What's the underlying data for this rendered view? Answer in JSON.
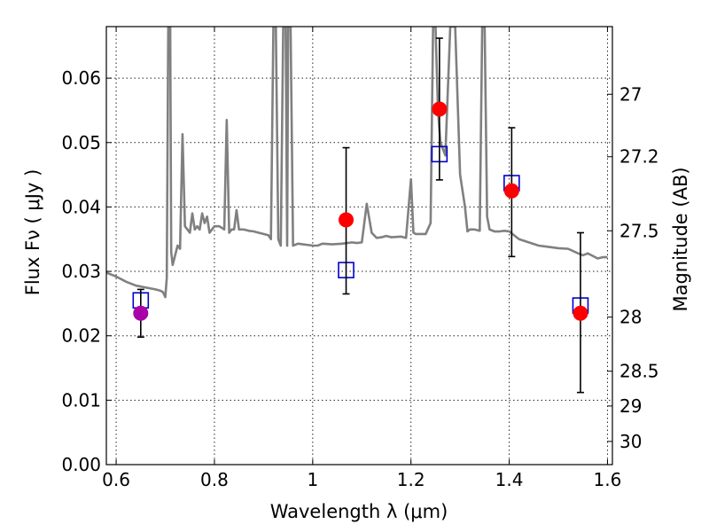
{
  "chart_data": {
    "type": "scatter",
    "xlabel": "Wavelength  λ (μm)",
    "ylabel": "Flux  Fν  ( μJy )",
    "ylabel_right": "Magnitude (AB)",
    "xlim": [
      0.58,
      1.61
    ],
    "ylim": [
      0.0,
      0.068
    ],
    "x_ticks": [
      0.6,
      0.8,
      1.0,
      1.2,
      1.4,
      1.6
    ],
    "x_tick_labels": [
      "0.6",
      "0.8",
      "1",
      "1.2",
      "1.4",
      "1.6"
    ],
    "y_ticks": [
      0.0,
      0.01,
      0.02,
      0.03,
      0.04,
      0.05,
      0.06
    ],
    "y_tick_labels": [
      "0.00",
      "0.01",
      "0.02",
      "0.03",
      "0.04",
      "0.05",
      "0.06"
    ],
    "right_ticks": [
      {
        "label": "27",
        "flux": 0.0575
      },
      {
        "label": "27.2",
        "flux": 0.0478
      },
      {
        "label": "27.5",
        "flux": 0.0363
      },
      {
        "label": "28",
        "flux": 0.0229
      },
      {
        "label": "28.5",
        "flux": 0.0145
      },
      {
        "label": "29",
        "flux": 0.0091
      },
      {
        "label": "30",
        "flux": 0.0036
      }
    ],
    "grid": true,
    "series": [
      {
        "kind": "spectrum",
        "color": "#808080",
        "points": [
          [
            0.58,
            0.0298
          ],
          [
            0.6,
            0.0292
          ],
          [
            0.62,
            0.0284
          ],
          [
            0.64,
            0.0278
          ],
          [
            0.66,
            0.0275
          ],
          [
            0.68,
            0.0272
          ],
          [
            0.69,
            0.027
          ],
          [
            0.695,
            0.0268
          ],
          [
            0.7,
            0.026
          ],
          [
            0.703,
            0.029
          ],
          [
            0.706,
            0.068
          ],
          [
            0.71,
            0.068
          ],
          [
            0.712,
            0.033
          ],
          [
            0.715,
            0.031
          ],
          [
            0.72,
            0.0325
          ],
          [
            0.725,
            0.034
          ],
          [
            0.73,
            0.0335
          ],
          [
            0.735,
            0.0513
          ],
          [
            0.74,
            0.037
          ],
          [
            0.745,
            0.0365
          ],
          [
            0.75,
            0.036
          ],
          [
            0.755,
            0.039
          ],
          [
            0.76,
            0.0365
          ],
          [
            0.765,
            0.037
          ],
          [
            0.77,
            0.0365
          ],
          [
            0.775,
            0.039
          ],
          [
            0.78,
            0.0375
          ],
          [
            0.785,
            0.0385
          ],
          [
            0.79,
            0.036
          ],
          [
            0.8,
            0.037
          ],
          [
            0.81,
            0.037
          ],
          [
            0.82,
            0.0365
          ],
          [
            0.825,
            0.0535
          ],
          [
            0.83,
            0.036
          ],
          [
            0.835,
            0.0365
          ],
          [
            0.84,
            0.0365
          ],
          [
            0.845,
            0.0395
          ],
          [
            0.85,
            0.0365
          ],
          [
            0.86,
            0.0365
          ],
          [
            0.87,
            0.0363
          ],
          [
            0.88,
            0.0362
          ],
          [
            0.89,
            0.036
          ],
          [
            0.9,
            0.0358
          ],
          [
            0.91,
            0.0356
          ],
          [
            0.915,
            0.035
          ],
          [
            0.92,
            0.068
          ],
          [
            0.925,
            0.068
          ],
          [
            0.93,
            0.035
          ],
          [
            0.935,
            0.034
          ],
          [
            0.94,
            0.068
          ],
          [
            0.945,
            0.068
          ],
          [
            0.948,
            0.034
          ],
          [
            0.95,
            0.068
          ],
          [
            0.955,
            0.068
          ],
          [
            0.96,
            0.034
          ],
          [
            0.97,
            0.0343
          ],
          [
            0.98,
            0.0342
          ],
          [
            0.99,
            0.0341
          ],
          [
            1.0,
            0.034
          ],
          [
            1.01,
            0.034
          ],
          [
            1.02,
            0.0343
          ],
          [
            1.04,
            0.0342
          ],
          [
            1.06,
            0.0343
          ],
          [
            1.08,
            0.0345
          ],
          [
            1.09,
            0.0344
          ],
          [
            1.1,
            0.0345
          ],
          [
            1.11,
            0.0405
          ],
          [
            1.12,
            0.036
          ],
          [
            1.13,
            0.0352
          ],
          [
            1.14,
            0.0353
          ],
          [
            1.15,
            0.0355
          ],
          [
            1.16,
            0.0353
          ],
          [
            1.18,
            0.0354
          ],
          [
            1.19,
            0.0352
          ],
          [
            1.2,
            0.0443
          ],
          [
            1.205,
            0.036
          ],
          [
            1.21,
            0.0358
          ],
          [
            1.22,
            0.0358
          ],
          [
            1.23,
            0.0358
          ],
          [
            1.24,
            0.0375
          ],
          [
            1.245,
            0.068
          ],
          [
            1.25,
            0.068
          ],
          [
            1.255,
            0.055
          ],
          [
            1.26,
            0.05
          ],
          [
            1.27,
            0.048
          ],
          [
            1.28,
            0.068
          ],
          [
            1.29,
            0.068
          ],
          [
            1.3,
            0.045
          ],
          [
            1.31,
            0.04
          ],
          [
            1.315,
            0.0362
          ],
          [
            1.32,
            0.0365
          ],
          [
            1.33,
            0.0365
          ],
          [
            1.34,
            0.0363
          ],
          [
            1.345,
            0.068
          ],
          [
            1.35,
            0.068
          ],
          [
            1.355,
            0.0385
          ],
          [
            1.36,
            0.0365
          ],
          [
            1.37,
            0.0362
          ],
          [
            1.38,
            0.0362
          ],
          [
            1.39,
            0.0363
          ],
          [
            1.4,
            0.0362
          ],
          [
            1.42,
            0.035
          ],
          [
            1.44,
            0.0345
          ],
          [
            1.46,
            0.034
          ],
          [
            1.48,
            0.0338
          ],
          [
            1.5,
            0.0336
          ],
          [
            1.52,
            0.0335
          ],
          [
            1.54,
            0.0328
          ],
          [
            1.55,
            0.0325
          ],
          [
            1.56,
            0.0328
          ],
          [
            1.58,
            0.032
          ],
          [
            1.59,
            0.0322
          ],
          [
            1.6,
            0.0322
          ]
        ]
      },
      {
        "kind": "observed",
        "marker": "circle",
        "points": [
          {
            "x": 0.65,
            "y": 0.0235,
            "yerr_low": 0.0198,
            "yerr_high": 0.0272,
            "color": "#aa00aa"
          },
          {
            "x": 1.068,
            "y": 0.038,
            "yerr_low": 0.0265,
            "yerr_high": 0.0492,
            "color": "#ff0000"
          },
          {
            "x": 1.258,
            "y": 0.0552,
            "yerr_low": 0.0442,
            "yerr_high": 0.0662,
            "color": "#ff0000"
          },
          {
            "x": 1.405,
            "y": 0.0425,
            "yerr_low": 0.0323,
            "yerr_high": 0.0523,
            "color": "#ff0000"
          },
          {
            "x": 1.545,
            "y": 0.0235,
            "yerr_low": 0.0112,
            "yerr_high": 0.036,
            "color": "#ff0000"
          }
        ]
      },
      {
        "kind": "model",
        "marker": "open-square",
        "color": "#0000cc",
        "points": [
          {
            "x": 0.65,
            "y": 0.0255
          },
          {
            "x": 1.068,
            "y": 0.0302
          },
          {
            "x": 1.258,
            "y": 0.0482
          },
          {
            "x": 1.405,
            "y": 0.0437
          },
          {
            "x": 1.545,
            "y": 0.0247
          }
        ]
      }
    ]
  }
}
